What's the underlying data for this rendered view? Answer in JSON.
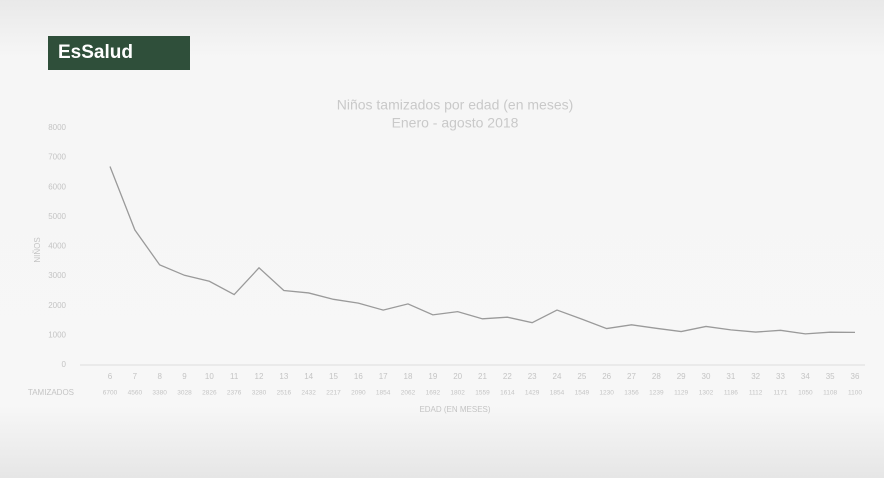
{
  "logo": "EsSalud",
  "chart_data": {
    "type": "line",
    "title": "Niños tamizados por edad (en meses)",
    "subtitle": "Enero - agosto 2018",
    "x_label": "EDAD (EN MESES)",
    "y_label": "NIÑOS",
    "categories": [
      "6",
      "7",
      "8",
      "9",
      "10",
      "11",
      "12",
      "13",
      "14",
      "15",
      "16",
      "17",
      "18",
      "19",
      "20",
      "21",
      "22",
      "23",
      "24",
      "25",
      "26",
      "27",
      "28",
      "29",
      "30",
      "31",
      "32",
      "33",
      "34",
      "35",
      "36"
    ],
    "series": [
      {
        "name": "TAMIZADOS",
        "color": "#9a9a9a",
        "values": [
          6700,
          4560,
          3380,
          3028,
          2826,
          2376,
          3280,
          2516,
          2432,
          2217,
          2090,
          1854,
          2062,
          1692,
          1802,
          1559,
          1614,
          1429,
          1854,
          1549,
          1230,
          1356,
          1239,
          1129,
          1302,
          1186,
          1112,
          1171,
          1050,
          1108,
          1100
        ]
      }
    ],
    "ylim": [
      0,
      8000
    ],
    "yticks": [
      0,
      1000,
      2000,
      3000,
      4000,
      5000,
      6000,
      7000,
      8000
    ],
    "grid": false
  }
}
